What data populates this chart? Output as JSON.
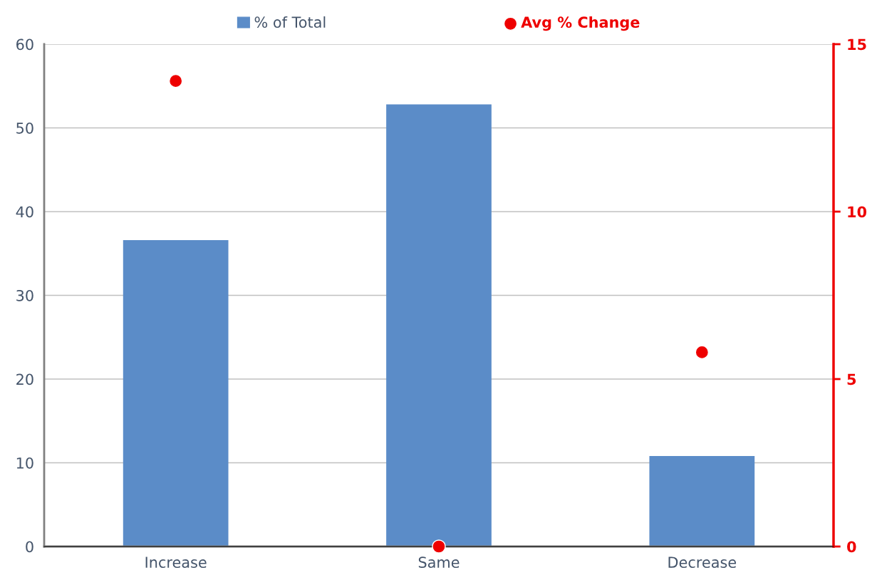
{
  "chart_data": {
    "type": "bar",
    "categories": [
      "Increase",
      "Same",
      "Decrease"
    ],
    "series": [
      {
        "name": "% of Total",
        "color": "#5b8cc8",
        "values": [
          36.6,
          52.8,
          10.8
        ]
      },
      {
        "name": "Avg % Change",
        "type": "scatter",
        "axis": "y2",
        "color": "#ee0000",
        "values": [
          13.9,
          0,
          5.8
        ]
      }
    ],
    "ylim": [
      0,
      60
    ],
    "yticks": [
      0,
      10,
      20,
      30,
      40,
      50,
      60
    ],
    "y2lim": [
      0,
      15
    ],
    "y2ticks": [
      0,
      5,
      10,
      15
    ],
    "grid": "y",
    "legend": "top",
    "marker": "circle"
  }
}
